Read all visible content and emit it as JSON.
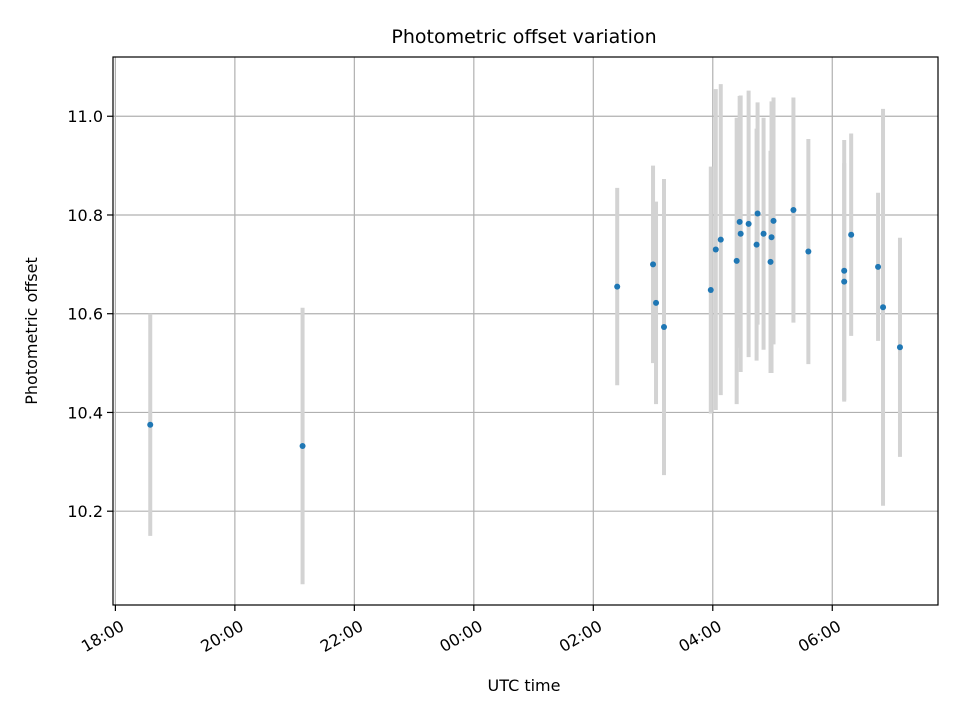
{
  "chart_data": {
    "type": "scatter",
    "title": "Photometric offset variation",
    "xlabel": "UTC time",
    "ylabel": "Photometric offset",
    "grid": true,
    "x_axis": {
      "kind": "time",
      "range_hours": [
        17.96,
        31.77
      ],
      "ticks": [
        {
          "hour": 18,
          "label": "18:00"
        },
        {
          "hour": 20,
          "label": "20:00"
        },
        {
          "hour": 22,
          "label": "22:00"
        },
        {
          "hour": 24,
          "label": "00:00"
        },
        {
          "hour": 26,
          "label": "02:00"
        },
        {
          "hour": 28,
          "label": "04:00"
        },
        {
          "hour": 30,
          "label": "06:00"
        }
      ]
    },
    "y_axis": {
      "range": [
        10.01,
        11.12
      ],
      "ticks": [
        {
          "value": 10.2,
          "label": "10.2"
        },
        {
          "value": 10.4,
          "label": "10.4"
        },
        {
          "value": 10.6,
          "label": "10.6"
        },
        {
          "value": 10.8,
          "label": "10.8"
        },
        {
          "value": 11.0,
          "label": "11.0"
        }
      ]
    },
    "colors": {
      "marker": "#1f77b4",
      "errorbar": "#d3d3d3",
      "grid": "#b0b0b0"
    },
    "points": [
      {
        "t": "18:35",
        "y": 10.375,
        "err": 0.225
      },
      {
        "t": "21:08",
        "y": 10.332,
        "err": 0.28
      },
      {
        "t": "02:24",
        "y": 10.655,
        "err": 0.2
      },
      {
        "t": "03:00",
        "y": 10.7,
        "err": 0.2
      },
      {
        "t": "03:03",
        "y": 10.622,
        "err": 0.205
      },
      {
        "t": "03:11",
        "y": 10.573,
        "err": 0.3
      },
      {
        "t": "03:58",
        "y": 10.648,
        "err": 0.25
      },
      {
        "t": "04:03",
        "y": 10.73,
        "err": 0.325
      },
      {
        "t": "04:08",
        "y": 10.75,
        "err": 0.315
      },
      {
        "t": "04:24",
        "y": 10.707,
        "err": 0.29
      },
      {
        "t": "04:27",
        "y": 10.786,
        "err": 0.255
      },
      {
        "t": "04:28",
        "y": 10.762,
        "err": 0.28
      },
      {
        "t": "04:36",
        "y": 10.782,
        "err": 0.27
      },
      {
        "t": "04:44",
        "y": 10.74,
        "err": 0.235
      },
      {
        "t": "04:45",
        "y": 10.803,
        "err": 0.225
      },
      {
        "t": "04:51",
        "y": 10.762,
        "err": 0.235
      },
      {
        "t": "04:58",
        "y": 10.705,
        "err": 0.225
      },
      {
        "t": "04:59",
        "y": 10.755,
        "err": 0.275
      },
      {
        "t": "05:01",
        "y": 10.788,
        "err": 0.25
      },
      {
        "t": "05:21",
        "y": 10.81,
        "err": 0.228
      },
      {
        "t": "05:36",
        "y": 10.726,
        "err": 0.228
      },
      {
        "t": "06:12",
        "y": 10.687,
        "err": 0.265
      },
      {
        "t": "06:12",
        "y": 10.665,
        "err": 0.24
      },
      {
        "t": "06:19",
        "y": 10.76,
        "err": 0.205
      },
      {
        "t": "06:46",
        "y": 10.695,
        "err": 0.15
      },
      {
        "t": "06:51",
        "y": 10.613,
        "err": 0.402
      },
      {
        "t": "07:08",
        "y": 10.532,
        "err": 0.222
      }
    ]
  }
}
